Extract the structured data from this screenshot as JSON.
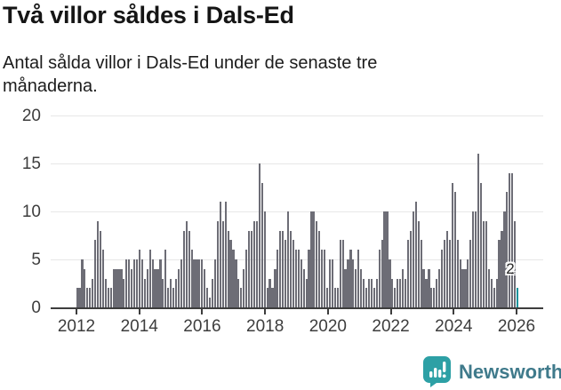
{
  "header": {
    "title": "Två villor såldes i Dals-Ed",
    "subtitle": "Antal sålda villor i Dals-Ed under de senaste tre månaderna."
  },
  "chart_data": {
    "type": "bar",
    "title": "Två villor såldes i Dals-Ed",
    "subtitle": "Antal sålda villor i Dals-Ed under de senaste tre månaderna.",
    "xlabel": "",
    "ylabel": "",
    "ylim": [
      0,
      20
    ],
    "y_ticks": [
      0,
      5,
      10,
      15,
      20
    ],
    "x_ticks": [
      "2012",
      "2014",
      "2016",
      "2018",
      "2020",
      "2022",
      "2024",
      "2026"
    ],
    "x_start": "2012-01",
    "x_interval": "monthly",
    "grid": "horizontal",
    "legend": "none",
    "bar_color": "#6d6d76",
    "highlight_color": "#12949c",
    "highlight_index": "last",
    "last_value_label": "2",
    "values": [
      2,
      2,
      5,
      4,
      2,
      2,
      3,
      7,
      9,
      8,
      6,
      3,
      2,
      2,
      4,
      4,
      4,
      4,
      3,
      5,
      5,
      4,
      5,
      5,
      6,
      5,
      3,
      4,
      6,
      5,
      4,
      4,
      5,
      3,
      6,
      2,
      3,
      2,
      3,
      4,
      5,
      8,
      9,
      8,
      6,
      5,
      5,
      5,
      5,
      4,
      2,
      1,
      3,
      5,
      9,
      11,
      9,
      11,
      8,
      7,
      6,
      5,
      3,
      2,
      4,
      6,
      8,
      8,
      9,
      9,
      15,
      13,
      10,
      2,
      3,
      2,
      4,
      6,
      8,
      8,
      7,
      10,
      8,
      7,
      6,
      6,
      5,
      4,
      3,
      6,
      10,
      10,
      9,
      8,
      6,
      6,
      2,
      5,
      5,
      2,
      2,
      7,
      7,
      4,
      5,
      6,
      5,
      4,
      6,
      4,
      3,
      2,
      3,
      3,
      2,
      3,
      6,
      7,
      10,
      10,
      5,
      3,
      2,
      3,
      3,
      4,
      3,
      7,
      8,
      10,
      11,
      9,
      7,
      4,
      3,
      4,
      2,
      2,
      3,
      4,
      6,
      7,
      8,
      7,
      13,
      12,
      7,
      5,
      4,
      4,
      5,
      7,
      10,
      10,
      16,
      13,
      9,
      9,
      4,
      3,
      2,
      3,
      7,
      8,
      10,
      12,
      14,
      14,
      9,
      2
    ]
  },
  "style": {
    "axis_color": "#3d3d3d",
    "grid_color": "#e7e7e7",
    "tick_label_color": "#3d3d3d",
    "title_color": "#151515"
  },
  "footer": {
    "brand": "Newsworthy",
    "brand_color": "#3f7a8b",
    "icon": "speech-bubble-bar-chart-icon",
    "icon_color": "#2da0a5"
  }
}
